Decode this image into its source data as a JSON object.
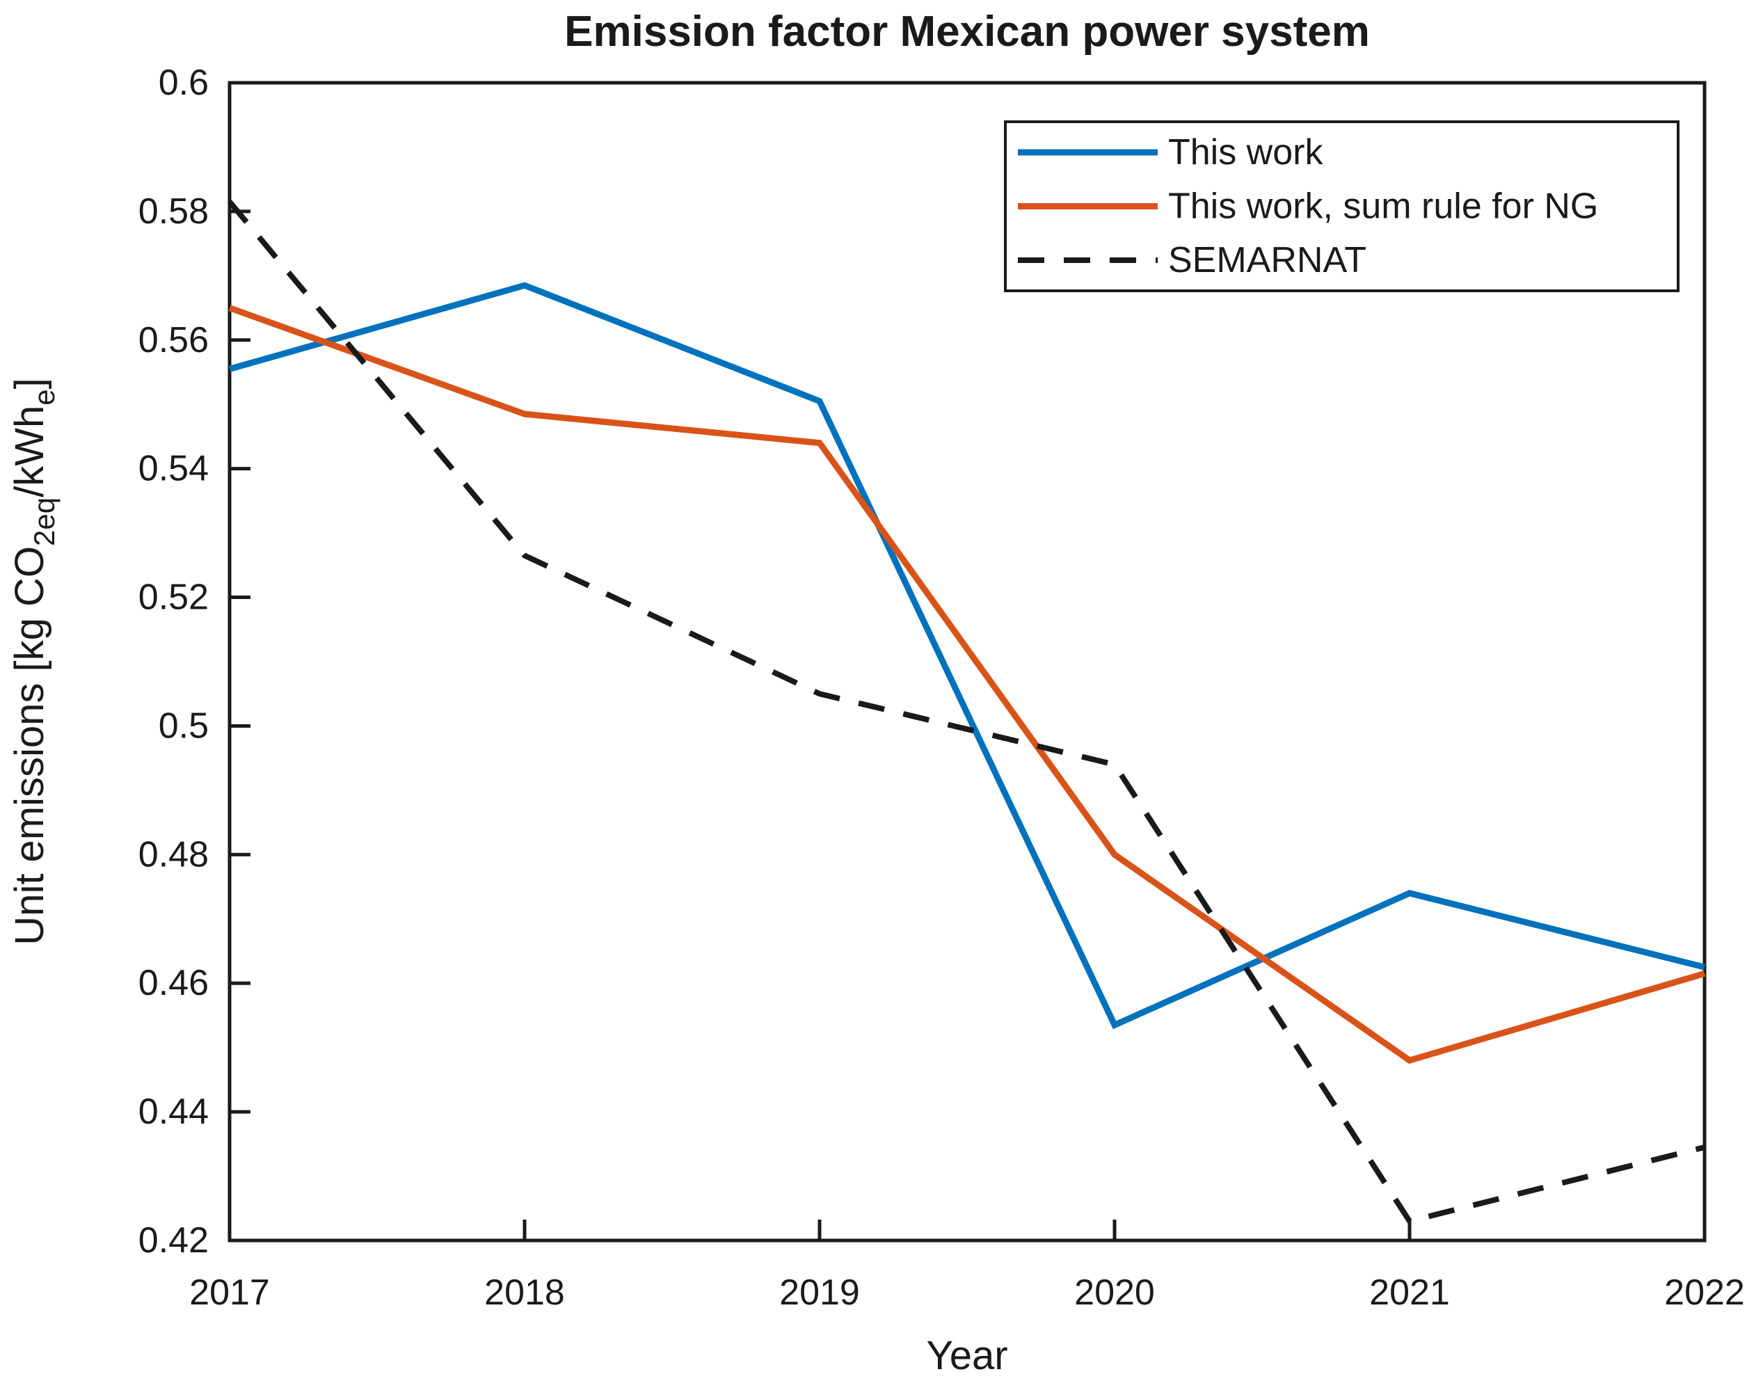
{
  "chart_data": {
    "type": "line",
    "title": "Emission factor Mexican power system",
    "xlabel": "Year",
    "ylabel": "Unit emissions [kg CO2eq/kWhe]",
    "ylabel_parts": [
      {
        "t": "Unit emissions [kg CO",
        "sub": false
      },
      {
        "t": "2eq",
        "sub": true
      },
      {
        "t": "/kWh",
        "sub": false
      },
      {
        "t": "e",
        "sub": true
      },
      {
        "t": "]",
        "sub": false
      }
    ],
    "x": [
      2017,
      2018,
      2019,
      2020,
      2021,
      2022
    ],
    "x_tick_labels": [
      "2017",
      "2018",
      "2019",
      "2020",
      "2021",
      "2022"
    ],
    "xlim": [
      2017,
      2022
    ],
    "ylim": [
      0.42,
      0.6
    ],
    "y_ticks": [
      0.42,
      0.44,
      0.46,
      0.48,
      0.5,
      0.52,
      0.54,
      0.56,
      0.58,
      0.6
    ],
    "y_tick_labels": [
      "0.42",
      "0.44",
      "0.46",
      "0.48",
      "0.5",
      "0.52",
      "0.54",
      "0.56",
      "0.58",
      "0.6"
    ],
    "grid": false,
    "legend_position": "top-right",
    "series": [
      {
        "name": "This work",
        "color": "#0072BD",
        "style": "solid",
        "values": [
          0.5555,
          0.5685,
          0.5505,
          0.4535,
          0.474,
          0.4625
        ]
      },
      {
        "name": "This work, sum rule for NG",
        "color": "#D95319",
        "style": "solid",
        "values": [
          0.565,
          0.5485,
          0.544,
          0.48,
          0.448,
          0.4615
        ]
      },
      {
        "name": "SEMARNAT",
        "color": "#1A1A1A",
        "style": "dashed",
        "values": [
          0.5815,
          0.5265,
          0.505,
          0.494,
          0.423,
          0.4345
        ]
      }
    ],
    "colors": {
      "axis": "#1a1a1a",
      "background": "#ffffff",
      "text": "#1a1a1a"
    }
  }
}
